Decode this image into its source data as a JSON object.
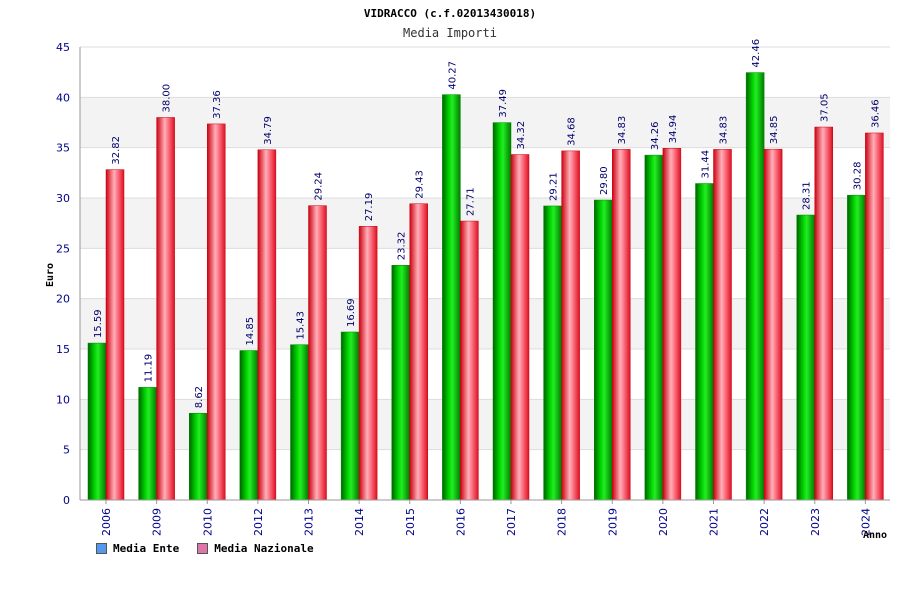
{
  "chart_data": {
    "type": "bar",
    "title": "VIDRACCO (c.f.02013430018)",
    "subtitle": "Media Importi",
    "xlabel": "Anno",
    "ylabel": "Euro",
    "ylim": [
      0,
      45
    ],
    "yticks": [
      0,
      5,
      10,
      15,
      20,
      25,
      30,
      35,
      40,
      45
    ],
    "grid": true,
    "legend_position": "bottom-left",
    "categories": [
      "2006",
      "2009",
      "2010",
      "2012",
      "2013",
      "2014",
      "2015",
      "2016",
      "2017",
      "2018",
      "2019",
      "2020",
      "2021",
      "2022",
      "2023",
      "2024"
    ],
    "series": [
      {
        "name": "Media Ente",
        "color": "#00c000",
        "legend_color": "#5599ee",
        "values": [
          15.59,
          11.19,
          8.62,
          14.85,
          15.43,
          16.69,
          23.32,
          40.27,
          37.49,
          29.21,
          29.8,
          34.26,
          31.44,
          42.46,
          28.31,
          30.28
        ]
      },
      {
        "name": "Media Nazionale",
        "color": "#ee2233",
        "legend_color": "#dd77aa",
        "values": [
          32.82,
          38.0,
          37.36,
          34.79,
          29.24,
          27.19,
          29.43,
          27.71,
          34.32,
          34.68,
          34.83,
          34.94,
          34.83,
          34.85,
          37.05,
          36.46
        ]
      }
    ]
  }
}
